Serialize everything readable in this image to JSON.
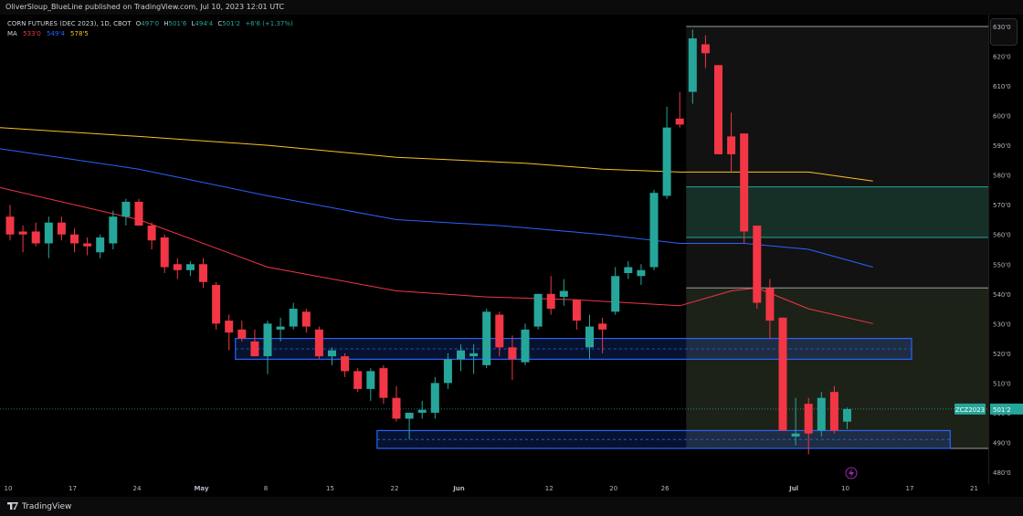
{
  "publisher": "OliverSloup_BlueLine published on TradingView.com, Jul 10, 2023 12:01 UTC",
  "header": {
    "symbol": "CORN FUTURES (DEC 2023), 1D, CBOT",
    "open_label": "O",
    "open": "497'0",
    "high_label": "H",
    "high": "501'6",
    "low_label": "L",
    "low": "494'4",
    "close_label": "C",
    "close": "501'2",
    "change": "+6'6 (+1.37%)"
  },
  "ma_legend": {
    "label": "MA",
    "values": [
      "533'0",
      "549'4",
      "578'5"
    ],
    "colors": [
      "#f23645",
      "#2962ff",
      "#f7c325"
    ]
  },
  "last_price": {
    "symbol_tag": "ZCZ2023",
    "price_tag": "501'2",
    "value": 501.25
  },
  "footer": {
    "brand": "TradingView"
  },
  "colors": {
    "up": "#26a69a",
    "down": "#f23645",
    "zone": "#2962ff",
    "bg": "#000000"
  },
  "chart_data": {
    "type": "candlestick",
    "title": "CORN FUTURES (DEC 2023), 1D, CBOT",
    "ylim": [
      476,
      634
    ],
    "y_ticks": [
      480,
      490,
      500,
      510,
      520,
      530,
      540,
      550,
      560,
      570,
      580,
      590,
      600,
      610,
      620,
      630
    ],
    "y_tick_labels": [
      "480'0",
      "490'0",
      "500'0",
      "510'0",
      "520'0",
      "530'0",
      "540'0",
      "550'0",
      "560'0",
      "570'0",
      "580'0",
      "590'0",
      "600'0",
      "610'0",
      "620'0",
      "630'0"
    ],
    "x_tick_labels": [
      "10",
      "17",
      "24",
      "May",
      "8",
      "15",
      "22",
      "Jun",
      "12",
      "20",
      "26",
      "Jul",
      "10",
      "17",
      "21"
    ],
    "x_tick_days": [
      0,
      5,
      10,
      15,
      20,
      25,
      30,
      35,
      42,
      47,
      51,
      61,
      65,
      70,
      75
    ],
    "candles": [
      {
        "o": 566,
        "h": 570,
        "l": 558,
        "c": 560
      },
      {
        "o": 561,
        "h": 563,
        "l": 554,
        "c": 560
      },
      {
        "o": 561,
        "h": 564,
        "l": 556,
        "c": 557
      },
      {
        "o": 557,
        "h": 566,
        "l": 552,
        "c": 564
      },
      {
        "o": 564,
        "h": 566,
        "l": 558,
        "c": 560
      },
      {
        "o": 560,
        "h": 562,
        "l": 554,
        "c": 557
      },
      {
        "o": 557,
        "h": 559,
        "l": 553,
        "c": 556
      },
      {
        "o": 554,
        "h": 560,
        "l": 552,
        "c": 559
      },
      {
        "o": 557,
        "h": 568,
        "l": 555,
        "c": 566
      },
      {
        "o": 566,
        "h": 572,
        "l": 563,
        "c": 571
      },
      {
        "o": 571,
        "h": 572,
        "l": 563,
        "c": 563
      },
      {
        "o": 563,
        "h": 564,
        "l": 555,
        "c": 558
      },
      {
        "o": 559,
        "h": 560,
        "l": 547,
        "c": 549
      },
      {
        "o": 550,
        "h": 552,
        "l": 545,
        "c": 548
      },
      {
        "o": 548,
        "h": 551,
        "l": 546,
        "c": 550
      },
      {
        "o": 550,
        "h": 552,
        "l": 542,
        "c": 544
      },
      {
        "o": 543,
        "h": 544,
        "l": 528,
        "c": 530
      },
      {
        "o": 531,
        "h": 533,
        "l": 521,
        "c": 527
      },
      {
        "o": 528,
        "h": 531,
        "l": 524,
        "c": 525
      },
      {
        "o": 524,
        "h": 528,
        "l": 519,
        "c": 519
      },
      {
        "o": 519,
        "h": 531,
        "l": 513,
        "c": 530
      },
      {
        "o": 528,
        "h": 532,
        "l": 524,
        "c": 529
      },
      {
        "o": 529,
        "h": 537,
        "l": 528,
        "c": 535
      },
      {
        "o": 534,
        "h": 535,
        "l": 527,
        "c": 529
      },
      {
        "o": 528,
        "h": 529,
        "l": 518,
        "c": 519
      },
      {
        "o": 519,
        "h": 522,
        "l": 516,
        "c": 521
      },
      {
        "o": 519,
        "h": 520,
        "l": 512,
        "c": 514
      },
      {
        "o": 514,
        "h": 515,
        "l": 507,
        "c": 508
      },
      {
        "o": 508,
        "h": 515,
        "l": 504,
        "c": 514
      },
      {
        "o": 515,
        "h": 516,
        "l": 503,
        "c": 505
      },
      {
        "o": 505,
        "h": 509,
        "l": 497,
        "c": 498
      },
      {
        "o": 498,
        "h": 500,
        "l": 491,
        "c": 500
      },
      {
        "o": 500,
        "h": 504,
        "l": 498,
        "c": 501
      },
      {
        "o": 500,
        "h": 512,
        "l": 498,
        "c": 510
      },
      {
        "o": 510,
        "h": 520,
        "l": 508,
        "c": 518
      },
      {
        "o": 518,
        "h": 523,
        "l": 514,
        "c": 521
      },
      {
        "o": 519,
        "h": 523,
        "l": 513,
        "c": 520
      },
      {
        "o": 516,
        "h": 535,
        "l": 515,
        "c": 534
      },
      {
        "o": 533,
        "h": 534,
        "l": 519,
        "c": 522
      },
      {
        "o": 522,
        "h": 526,
        "l": 511,
        "c": 518
      },
      {
        "o": 517,
        "h": 530,
        "l": 516,
        "c": 528
      },
      {
        "o": 529,
        "h": 540,
        "l": 528,
        "c": 540
      },
      {
        "o": 540,
        "h": 546,
        "l": 533,
        "c": 535
      },
      {
        "o": 539,
        "h": 545,
        "l": 536,
        "c": 541
      },
      {
        "o": 538,
        "h": 538,
        "l": 528,
        "c": 531
      },
      {
        "o": 522,
        "h": 533,
        "l": 518,
        "c": 529
      },
      {
        "o": 530,
        "h": 532,
        "l": 520,
        "c": 528
      },
      {
        "o": 534,
        "h": 549,
        "l": 533,
        "c": 546
      },
      {
        "o": 547,
        "h": 551,
        "l": 545,
        "c": 549
      },
      {
        "o": 546,
        "h": 550,
        "l": 543,
        "c": 548
      },
      {
        "o": 549,
        "h": 575,
        "l": 548,
        "c": 574
      },
      {
        "o": 573,
        "h": 603,
        "l": 572,
        "c": 596
      },
      {
        "o": 599,
        "h": 608,
        "l": 596,
        "c": 597
      },
      {
        "o": 608,
        "h": 629,
        "l": 604,
        "c": 626
      },
      {
        "o": 624,
        "h": 627,
        "l": 616,
        "c": 621
      },
      {
        "o": 617,
        "h": 617,
        "l": 587,
        "c": 587
      },
      {
        "o": 593,
        "h": 601,
        "l": 581,
        "c": 587
      },
      {
        "o": 594,
        "h": 594,
        "l": 557,
        "c": 561
      },
      {
        "o": 563,
        "h": 563,
        "l": 535,
        "c": 537
      },
      {
        "o": 542,
        "h": 545,
        "l": 525,
        "c": 531
      },
      {
        "o": 532,
        "h": 532,
        "l": 494,
        "c": 494
      },
      {
        "o": 492,
        "h": 505,
        "l": 489,
        "c": 493
      },
      {
        "o": 503,
        "h": 505,
        "l": 486,
        "c": 493
      },
      {
        "o": 494,
        "h": 507,
        "l": 492,
        "c": 505
      },
      {
        "o": 507,
        "h": 509,
        "l": 493,
        "c": 494
      },
      {
        "o": 497,
        "h": 501.75,
        "l": 494.5,
        "c": 501.25
      }
    ],
    "ma_series": [
      {
        "name": "533'0",
        "color": "#f23645",
        "points": [
          [
            -1,
            576
          ],
          [
            10,
            565
          ],
          [
            20,
            549
          ],
          [
            30,
            541
          ],
          [
            37,
            539
          ],
          [
            44,
            538
          ],
          [
            52,
            536
          ],
          [
            56,
            541
          ],
          [
            58,
            542
          ],
          [
            62,
            535
          ],
          [
            67,
            530
          ]
        ]
      },
      {
        "name": "549'4",
        "color": "#2962ff",
        "points": [
          [
            -1,
            589
          ],
          [
            10,
            582
          ],
          [
            20,
            573
          ],
          [
            30,
            565
          ],
          [
            38,
            563
          ],
          [
            46,
            560
          ],
          [
            52,
            557
          ],
          [
            57,
            557
          ],
          [
            62,
            555
          ],
          [
            67,
            549
          ]
        ]
      },
      {
        "name": "578'5",
        "color": "#f7c325",
        "points": [
          [
            -1,
            596
          ],
          [
            10,
            593
          ],
          [
            20,
            590
          ],
          [
            30,
            586
          ],
          [
            40,
            584
          ],
          [
            46,
            582
          ],
          [
            52,
            581
          ],
          [
            57,
            581
          ],
          [
            62,
            581
          ],
          [
            67,
            578
          ]
        ]
      }
    ],
    "zones": [
      {
        "x0": 18,
        "x1": 70,
        "y0": 518,
        "y1": 525
      },
      {
        "x0": 29,
        "x1": 73,
        "y0": 488,
        "y1": 494
      }
    ],
    "projection": {
      "x0": 53,
      "x1": 77,
      "entry": 542,
      "targets": [
        559,
        576
      ],
      "top": 630,
      "stop": 488
    }
  }
}
